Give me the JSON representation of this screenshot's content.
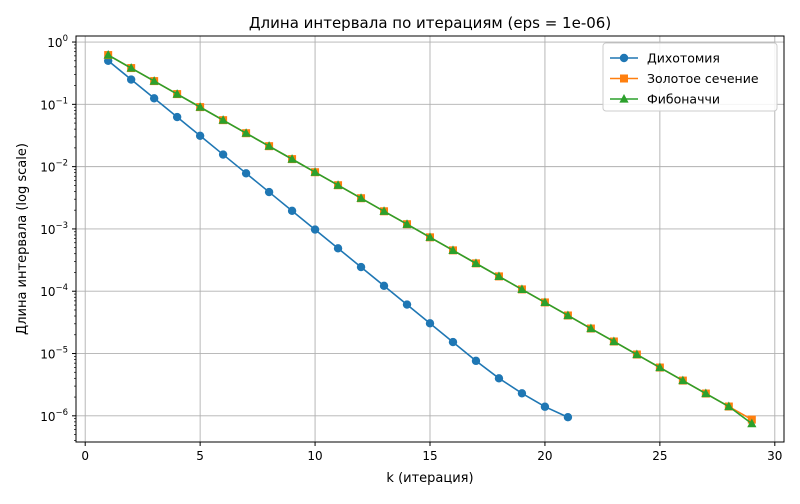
{
  "chart_data": {
    "type": "line",
    "title": "Длина интервала по итерациям (eps = 1e-06)",
    "xlabel": "k (итерация)",
    "ylabel": "Длина интервала (log scale)",
    "x_scale": "linear",
    "y_scale": "log",
    "xlim": [
      -0.4,
      30.4
    ],
    "ylim": [
      3.8e-07,
      1.25
    ],
    "x_ticks": [
      0,
      5,
      10,
      15,
      20,
      25,
      30
    ],
    "x_tick_labels": [
      "0",
      "5",
      "10",
      "15",
      "20",
      "25",
      "30"
    ],
    "y_ticks": [
      1e-06,
      1e-05,
      0.0001,
      0.001,
      0.01,
      0.1,
      1
    ],
    "y_tick_labels": [
      {
        "base": "10",
        "exp": "−6"
      },
      {
        "base": "10",
        "exp": "−5"
      },
      {
        "base": "10",
        "exp": "−4"
      },
      {
        "base": "10",
        "exp": "−3"
      },
      {
        "base": "10",
        "exp": "−2"
      },
      {
        "base": "10",
        "exp": "−1"
      },
      {
        "base": "10",
        "exp": "0"
      }
    ],
    "grid": true,
    "legend_position": "top-right",
    "series": [
      {
        "name": "Дихотомия",
        "color": "#1f77b4",
        "marker": "circle",
        "x": [
          1,
          2,
          3,
          4,
          5,
          6,
          7,
          8,
          9,
          10,
          11,
          12,
          13,
          14,
          15,
          16,
          17,
          18,
          19,
          20,
          21
        ],
        "y": [
          0.5,
          0.25,
          0.125,
          0.0625,
          0.03125,
          0.015625,
          0.0078125,
          0.00390625,
          0.001953125,
          0.0009765625,
          0.00048828125,
          0.000244140625,
          0.0001220703125,
          6.103515625e-05,
          3.0517578125e-05,
          1.52587890625e-05,
          7.62939453125e-06,
          4e-06,
          2.3e-06,
          1.4e-06,
          9.5e-07
        ]
      },
      {
        "name": "Золотое сечение",
        "color": "#ff7f0e",
        "marker": "square",
        "x": [
          1,
          2,
          3,
          4,
          5,
          6,
          7,
          8,
          9,
          10,
          11,
          12,
          13,
          14,
          15,
          16,
          17,
          18,
          19,
          20,
          21,
          22,
          23,
          24,
          25,
          26,
          27,
          28,
          29
        ],
        "y": [
          0.618,
          0.382,
          0.236,
          0.146,
          0.0902,
          0.0557,
          0.0344,
          0.0213,
          0.0132,
          0.00813,
          0.00503,
          0.00311,
          0.00192,
          0.00119,
          0.000733,
          0.000453,
          0.00028,
          0.000173,
          0.000107,
          6.61e-05,
          4.08e-05,
          2.52e-05,
          1.56e-05,
          9.64e-06,
          5.96e-06,
          3.68e-06,
          2.28e-06,
          1.41e-06,
          8.7e-07
        ]
      },
      {
        "name": "Фибоначчи",
        "color": "#2ca02c",
        "marker": "triangle",
        "x": [
          1,
          2,
          3,
          4,
          5,
          6,
          7,
          8,
          9,
          10,
          11,
          12,
          13,
          14,
          15,
          16,
          17,
          18,
          19,
          20,
          21,
          22,
          23,
          24,
          25,
          26,
          27,
          28,
          29
        ],
        "y": [
          0.618,
          0.382,
          0.236,
          0.146,
          0.0902,
          0.0557,
          0.0344,
          0.0213,
          0.0132,
          0.00813,
          0.00503,
          0.00311,
          0.00192,
          0.00119,
          0.000733,
          0.000453,
          0.00028,
          0.000173,
          0.000107,
          6.61e-05,
          4.08e-05,
          2.52e-05,
          1.56e-05,
          9.64e-06,
          5.96e-06,
          3.68e-06,
          2.28e-06,
          1.41e-06,
          7.5e-07
        ]
      }
    ]
  }
}
